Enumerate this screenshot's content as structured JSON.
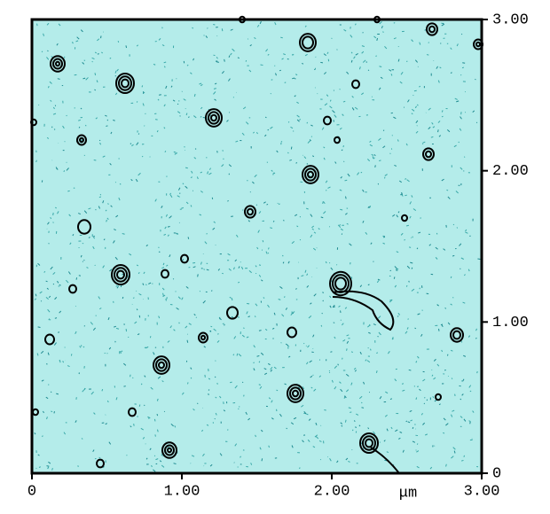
{
  "chart_data": {
    "type": "image",
    "x_label": "μm",
    "xlim": [
      0,
      3
    ],
    "ylim": [
      0,
      3
    ],
    "xticks": [
      0,
      {
        "value": 1,
        "label": "1.00"
      },
      {
        "value": 2,
        "label": "2.00"
      },
      {
        "value": 3,
        "label": "3.00"
      }
    ],
    "yticks": [
      0,
      {
        "value": 1,
        "label": "1.00"
      },
      {
        "value": 2,
        "label": "2.00"
      },
      {
        "value": 3,
        "label": "3.00"
      }
    ],
    "background": "#b4ecea"
  }
}
